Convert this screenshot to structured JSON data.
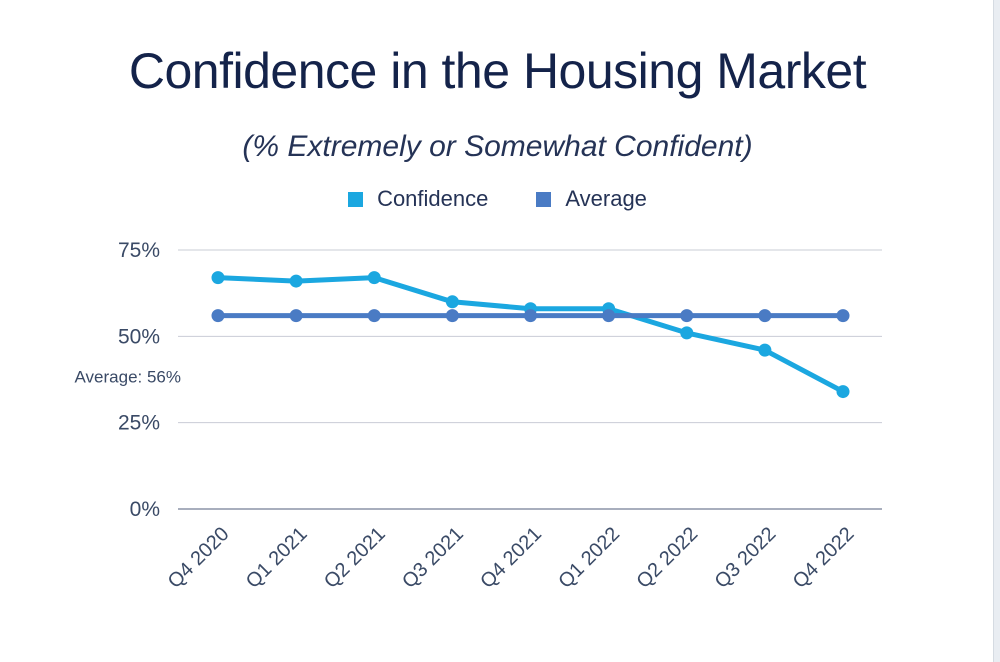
{
  "colors": {
    "confidence": "#1ba7e0",
    "average": "#4a7bc4",
    "grid": "#c9ccd6",
    "axis": "#8b93a7"
  },
  "chart_data": {
    "type": "line",
    "title": "Confidence in the Housing Market",
    "subtitle": "(% Extremely or Somewhat Confident)",
    "categories": [
      "Q4 2020",
      "Q1 2021",
      "Q2 2021",
      "Q3 2021",
      "Q4 2021",
      "Q1 2022",
      "Q2 2022",
      "Q3 2022",
      "Q4 2022"
    ],
    "series": [
      {
        "name": "Confidence",
        "values": [
          67,
          66,
          67,
          60,
          58,
          58,
          51,
          46,
          34
        ]
      },
      {
        "name": "Average",
        "values": [
          56,
          56,
          56,
          56,
          56,
          56,
          56,
          56,
          56
        ]
      }
    ],
    "yticks": [
      "0%",
      "25%",
      "50%",
      "75%"
    ],
    "ylim": [
      0,
      75
    ],
    "annotation": "Average: 56%",
    "grid": true,
    "legend_position": "top-center"
  }
}
